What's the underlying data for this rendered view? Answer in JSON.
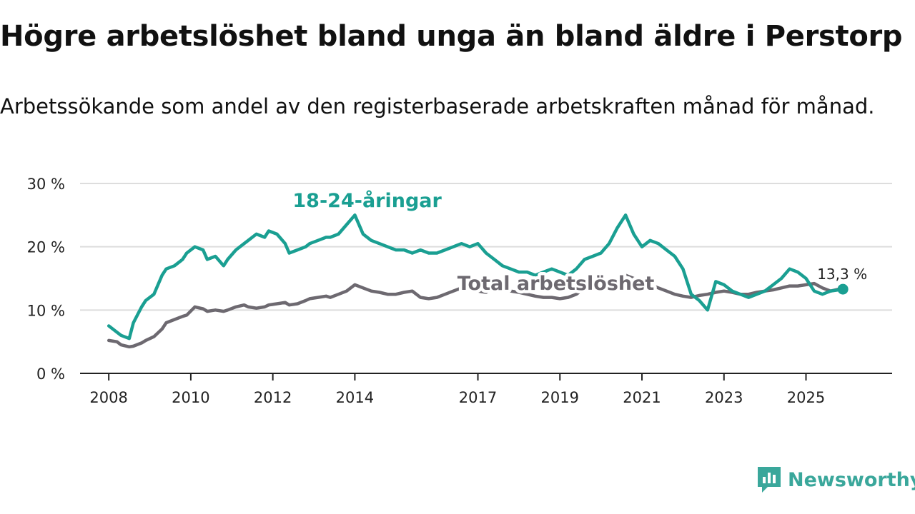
{
  "title": "Högre arbetslöshet bland unga än bland äldre i Perstorp",
  "subtitle": "Arbetssökande som andel av den registerbaserade arbetskraften månad för månad.",
  "brand": "Newsworthy",
  "colors": {
    "youth": "#1a9f92",
    "total": "#6d6970",
    "axis": "#222222",
    "grid": "#dddddd"
  },
  "chart_data": {
    "type": "line",
    "title": "Högre arbetslöshet bland unga än bland äldre i Perstorp",
    "xlabel": "",
    "ylabel": "",
    "xlim": [
      2007.3,
      2027.1
    ],
    "ylim": [
      0,
      30
    ],
    "y_ticks": [
      0,
      10,
      20,
      30
    ],
    "y_tick_labels": [
      "0 %",
      "10 %",
      "20 %",
      "30 %"
    ],
    "x_ticks": [
      2008,
      2010,
      2012,
      2014,
      2017,
      2019,
      2021,
      2023,
      2025
    ],
    "x_tick_labels": [
      "2008",
      "2010",
      "2012",
      "2014",
      "2017",
      "2019",
      "2021",
      "2023",
      "2025"
    ],
    "grid": true,
    "series": [
      {
        "name": "18-24-åringar",
        "label": "18-24-åringar",
        "label_at": [
          2014.3,
          26.3
        ],
        "x": [
          2008.0,
          2008.2,
          2008.3,
          2008.5,
          2008.6,
          2008.8,
          2008.9,
          2009.1,
          2009.3,
          2009.4,
          2009.6,
          2009.8,
          2009.9,
          2010.1,
          2010.3,
          2010.4,
          2010.6,
          2010.8,
          2010.9,
          2011.1,
          2011.3,
          2011.4,
          2011.6,
          2011.8,
          2011.9,
          2012.1,
          2012.3,
          2012.4,
          2012.6,
          2012.8,
          2012.9,
          2013.1,
          2013.3,
          2013.4,
          2013.6,
          2013.8,
          2014.0,
          2014.2,
          2014.4,
          2014.6,
          2014.8,
          2015.0,
          2015.2,
          2015.4,
          2015.6,
          2015.8,
          2016.0,
          2016.2,
          2016.4,
          2016.6,
          2016.8,
          2017.0,
          2017.2,
          2017.4,
          2017.6,
          2017.8,
          2018.0,
          2018.2,
          2018.4,
          2018.6,
          2018.8,
          2019.0,
          2019.2,
          2019.4,
          2019.6,
          2019.8,
          2020.0,
          2020.2,
          2020.4,
          2020.6,
          2020.8,
          2021.0,
          2021.2,
          2021.4,
          2021.6,
          2021.8,
          2022.0,
          2022.2,
          2022.4,
          2022.6,
          2022.8,
          2023.0,
          2023.2,
          2023.4,
          2023.6,
          2023.8,
          2024.0,
          2024.2,
          2024.4,
          2024.6,
          2024.8,
          2025.0,
          2025.2,
          2025.4,
          2025.6,
          2025.8,
          2025.9
        ],
        "values": [
          7.5,
          6.5,
          6.0,
          5.5,
          8.0,
          10.5,
          11.5,
          12.5,
          15.5,
          16.5,
          17.0,
          18.0,
          19.0,
          20.0,
          19.5,
          18.0,
          18.5,
          17.0,
          18.0,
          19.5,
          20.5,
          21.0,
          22.0,
          21.5,
          22.5,
          22.0,
          20.5,
          19.0,
          19.5,
          20.0,
          20.5,
          21.0,
          21.5,
          21.5,
          22.0,
          23.5,
          25.0,
          22.0,
          21.0,
          20.5,
          20.0,
          19.5,
          19.5,
          19.0,
          19.5,
          19.0,
          19.0,
          19.5,
          20.0,
          20.5,
          20.0,
          20.5,
          19.0,
          18.0,
          17.0,
          16.5,
          16.0,
          16.0,
          15.5,
          16.0,
          16.5,
          16.0,
          15.5,
          16.5,
          18.0,
          18.5,
          19.0,
          20.5,
          23.0,
          25.0,
          22.0,
          20.0,
          21.0,
          20.5,
          19.5,
          18.5,
          16.5,
          12.5,
          11.5,
          10.0,
          14.5,
          14.0,
          13.0,
          12.5,
          12.0,
          12.5,
          13.0,
          14.0,
          15.0,
          16.5,
          16.0,
          15.0,
          13.0,
          12.5,
          13.0,
          13.2,
          13.3
        ]
      },
      {
        "name": "Total arbetslöshet",
        "label": "Total arbetslöshet",
        "label_at": [
          2018.9,
          13.2
        ],
        "x": [
          2008.0,
          2008.2,
          2008.3,
          2008.5,
          2008.6,
          2008.8,
          2008.9,
          2009.1,
          2009.3,
          2009.4,
          2009.6,
          2009.8,
          2009.9,
          2010.1,
          2010.3,
          2010.4,
          2010.6,
          2010.8,
          2010.9,
          2011.1,
          2011.3,
          2011.4,
          2011.6,
          2011.8,
          2011.9,
          2012.1,
          2012.3,
          2012.4,
          2012.6,
          2012.8,
          2012.9,
          2013.1,
          2013.3,
          2013.4,
          2013.6,
          2013.8,
          2014.0,
          2014.2,
          2014.4,
          2014.6,
          2014.8,
          2015.0,
          2015.2,
          2015.4,
          2015.6,
          2015.8,
          2016.0,
          2016.2,
          2016.4,
          2016.6,
          2016.8,
          2017.0,
          2017.2,
          2017.4,
          2017.6,
          2017.8,
          2018.0,
          2018.2,
          2018.4,
          2018.6,
          2018.8,
          2019.0,
          2019.2,
          2019.4,
          2019.6,
          2019.8,
          2020.0,
          2020.2,
          2020.4,
          2020.6,
          2020.8,
          2021.0,
          2021.2,
          2021.4,
          2021.6,
          2021.8,
          2022.0,
          2022.2,
          2022.4,
          2022.6,
          2022.8,
          2023.0,
          2023.2,
          2023.4,
          2023.6,
          2023.8,
          2024.0,
          2024.2,
          2024.4,
          2024.6,
          2024.8,
          2025.0,
          2025.2,
          2025.4,
          2025.6,
          2025.8,
          2025.9
        ],
        "values": [
          5.2,
          5.0,
          4.5,
          4.2,
          4.3,
          4.8,
          5.2,
          5.8,
          7.0,
          8.0,
          8.5,
          9.0,
          9.2,
          10.5,
          10.2,
          9.8,
          10.0,
          9.8,
          10.0,
          10.5,
          10.8,
          10.5,
          10.3,
          10.5,
          10.8,
          11.0,
          11.2,
          10.8,
          11.0,
          11.5,
          11.8,
          12.0,
          12.2,
          12.0,
          12.5,
          13.0,
          14.0,
          13.5,
          13.0,
          12.8,
          12.5,
          12.5,
          12.8,
          13.0,
          12.0,
          11.8,
          12.0,
          12.5,
          13.0,
          13.5,
          13.2,
          13.0,
          12.8,
          13.5,
          13.2,
          13.0,
          12.8,
          12.5,
          12.2,
          12.0,
          12.0,
          11.8,
          12.0,
          12.5,
          13.5,
          14.0,
          14.5,
          14.8,
          15.0,
          15.5,
          15.0,
          14.5,
          14.0,
          13.5,
          13.0,
          12.5,
          12.2,
          12.0,
          12.3,
          12.5,
          12.8,
          13.0,
          12.8,
          12.5,
          12.5,
          12.8,
          13.0,
          13.2,
          13.5,
          13.8,
          13.8,
          14.0,
          14.2,
          13.5,
          13.0,
          13.3,
          13.2
        ]
      }
    ],
    "annotations": [
      {
        "text": "13,3 %",
        "x": 2025.9,
        "y": 13.3
      }
    ]
  }
}
